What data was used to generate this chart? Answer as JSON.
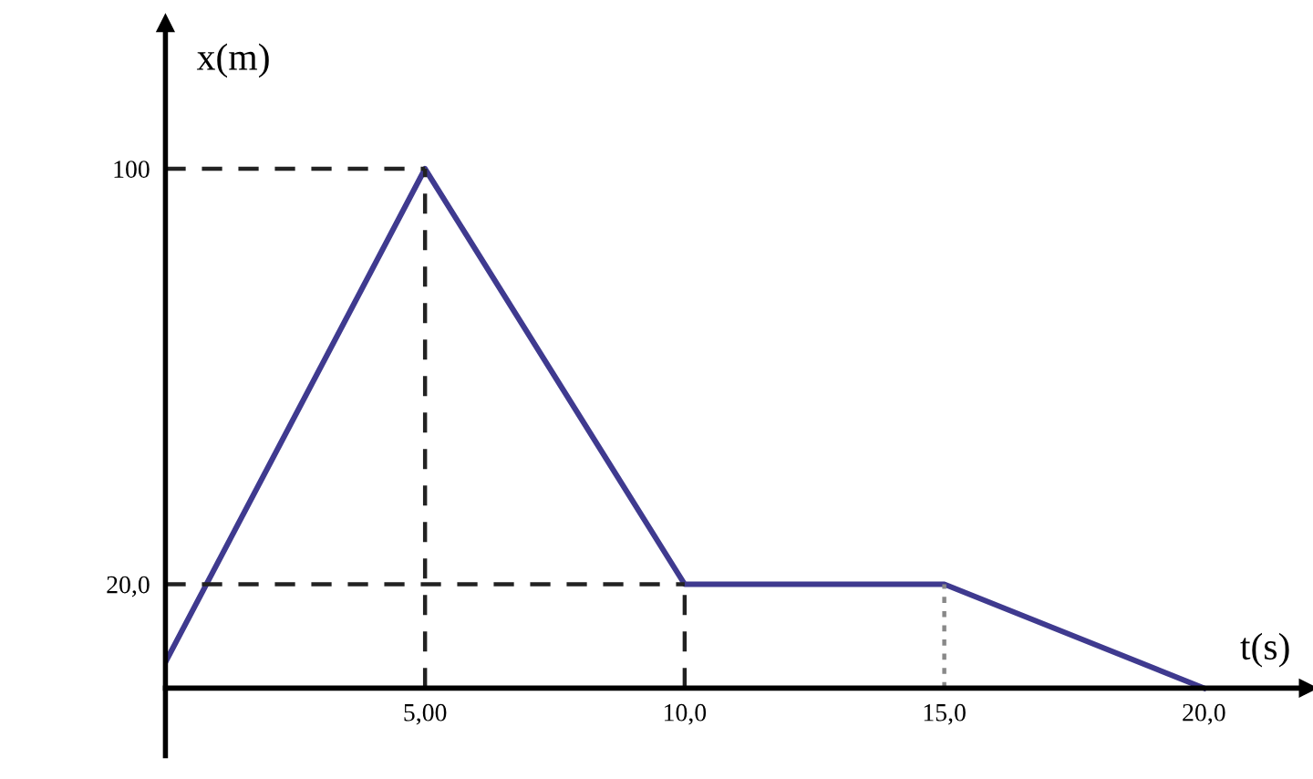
{
  "chart_data": {
    "type": "line",
    "xlabel": "t(s)",
    "ylabel": "x(m)",
    "x": [
      0,
      5,
      10,
      15,
      20
    ],
    "series": [
      {
        "color": "#3f3a8f",
        "values": [
          5,
          100,
          20,
          20,
          0
        ]
      }
    ],
    "xlim": [
      0,
      22
    ],
    "ylim": [
      -13,
      128
    ],
    "xticks": [
      {
        "value": 5,
        "label": "5,00"
      },
      {
        "value": 10,
        "label": "10,0"
      },
      {
        "value": 15,
        "label": "15,0"
      },
      {
        "value": 20,
        "label": "20,0"
      }
    ],
    "yticks": [
      100,
      {
        "value": 20,
        "label": "20,0"
      }
    ],
    "ref_lines": [
      {
        "axis": "y",
        "value": 100,
        "line_style": "dashed",
        "color": "#222222"
      },
      {
        "axis": "y",
        "value": 20,
        "line_style": "dashed",
        "color": "#222222"
      },
      {
        "axis": "x",
        "value": 5,
        "line_style": "dashed",
        "color": "#222222"
      },
      {
        "axis": "x",
        "value": 10,
        "line_style": "dashed",
        "color": "#222222"
      },
      {
        "axis": "x",
        "value": 15,
        "line_style": "dotted",
        "color": "#888888"
      }
    ],
    "grid": false,
    "legend": false,
    "marker": "none",
    "line_style": "solid"
  }
}
